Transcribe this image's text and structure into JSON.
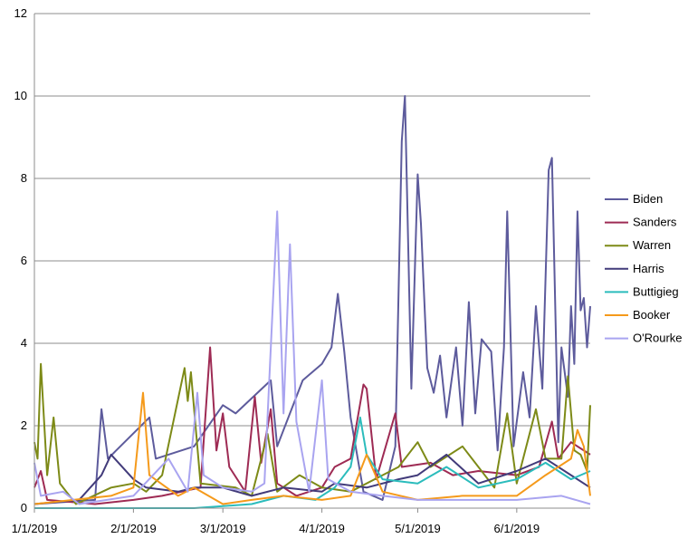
{
  "chart_data": {
    "type": "line",
    "title": "",
    "xlabel": "",
    "ylabel": "",
    "ylim": [
      0,
      12
    ],
    "yticks": [
      0,
      2,
      4,
      6,
      8,
      10,
      12
    ],
    "xlim": [
      "2019-01-01",
      "2019-06-24"
    ],
    "xticks": [
      "1/1/2019",
      "2/1/2019",
      "3/1/2019",
      "4/1/2019",
      "5/1/2019",
      "6/1/2019"
    ],
    "grid": "horizontal",
    "legend_position": "right",
    "series": [
      {
        "name": "Biden",
        "color": "#5d5b9c",
        "points": [
          [
            "2019-01-01",
            0.1
          ],
          [
            "2019-01-20",
            0.2
          ],
          [
            "2019-01-22",
            2.4
          ],
          [
            "2019-01-24",
            1.2
          ],
          [
            "2019-02-06",
            2.2
          ],
          [
            "2019-02-08",
            1.2
          ],
          [
            "2019-02-20",
            1.5
          ],
          [
            "2019-03-01",
            2.5
          ],
          [
            "2019-03-05",
            2.3
          ],
          [
            "2019-03-16",
            3.1
          ],
          [
            "2019-03-18",
            1.5
          ],
          [
            "2019-03-26",
            3.1
          ],
          [
            "2019-04-01",
            3.5
          ],
          [
            "2019-04-04",
            3.9
          ],
          [
            "2019-04-06",
            5.2
          ],
          [
            "2019-04-08",
            3.8
          ],
          [
            "2019-04-10",
            2.2
          ],
          [
            "2019-04-14",
            0.4
          ],
          [
            "2019-04-20",
            0.2
          ],
          [
            "2019-04-24",
            1.5
          ],
          [
            "2019-04-26",
            8.9
          ],
          [
            "2019-04-27",
            10.0
          ],
          [
            "2019-04-29",
            2.9
          ],
          [
            "2019-05-01",
            8.1
          ],
          [
            "2019-05-02",
            6.9
          ],
          [
            "2019-05-04",
            3.4
          ],
          [
            "2019-05-06",
            2.8
          ],
          [
            "2019-05-08",
            3.7
          ],
          [
            "2019-05-10",
            2.2
          ],
          [
            "2019-05-13",
            3.9
          ],
          [
            "2019-05-15",
            2.0
          ],
          [
            "2019-05-17",
            5.0
          ],
          [
            "2019-05-19",
            2.3
          ],
          [
            "2019-05-21",
            4.1
          ],
          [
            "2019-05-24",
            3.8
          ],
          [
            "2019-05-26",
            1.4
          ],
          [
            "2019-05-28",
            3.9
          ],
          [
            "2019-05-29",
            7.2
          ],
          [
            "2019-05-31",
            1.5
          ],
          [
            "2019-06-03",
            3.3
          ],
          [
            "2019-06-05",
            2.2
          ],
          [
            "2019-06-07",
            4.9
          ],
          [
            "2019-06-09",
            2.9
          ],
          [
            "2019-06-11",
            8.2
          ],
          [
            "2019-06-12",
            8.5
          ],
          [
            "2019-06-14",
            1.6
          ],
          [
            "2019-06-15",
            3.9
          ],
          [
            "2019-06-17",
            2.7
          ],
          [
            "2019-06-18",
            4.9
          ],
          [
            "2019-06-19",
            3.5
          ],
          [
            "2019-06-20",
            7.2
          ],
          [
            "2019-06-21",
            4.8
          ],
          [
            "2019-06-22",
            5.1
          ],
          [
            "2019-06-23",
            3.9
          ],
          [
            "2019-06-24",
            4.9
          ]
        ]
      },
      {
        "name": "Sanders",
        "color": "#9e2b54",
        "points": [
          [
            "2019-01-01",
            0.5
          ],
          [
            "2019-01-03",
            0.9
          ],
          [
            "2019-01-05",
            0.2
          ],
          [
            "2019-01-20",
            0.1
          ],
          [
            "2019-02-01",
            0.2
          ],
          [
            "2019-02-10",
            0.3
          ],
          [
            "2019-02-22",
            0.5
          ],
          [
            "2019-02-25",
            3.9
          ],
          [
            "2019-02-27",
            1.4
          ],
          [
            "2019-03-01",
            2.3
          ],
          [
            "2019-03-03",
            1.0
          ],
          [
            "2019-03-08",
            0.4
          ],
          [
            "2019-03-11",
            2.7
          ],
          [
            "2019-03-13",
            1.1
          ],
          [
            "2019-03-16",
            2.4
          ],
          [
            "2019-03-18",
            0.6
          ],
          [
            "2019-03-24",
            0.3
          ],
          [
            "2019-04-01",
            0.5
          ],
          [
            "2019-04-05",
            1.0
          ],
          [
            "2019-04-10",
            1.2
          ],
          [
            "2019-04-14",
            3.0
          ],
          [
            "2019-04-15",
            2.9
          ],
          [
            "2019-04-18",
            0.7
          ],
          [
            "2019-04-24",
            2.3
          ],
          [
            "2019-04-26",
            1.0
          ],
          [
            "2019-05-05",
            1.1
          ],
          [
            "2019-05-12",
            0.8
          ],
          [
            "2019-05-20",
            0.9
          ],
          [
            "2019-06-01",
            0.8
          ],
          [
            "2019-06-08",
            1.0
          ],
          [
            "2019-06-12",
            2.1
          ],
          [
            "2019-06-14",
            1.2
          ],
          [
            "2019-06-18",
            1.6
          ],
          [
            "2019-06-24",
            1.3
          ]
        ]
      },
      {
        "name": "Warren",
        "color": "#7d8a17",
        "points": [
          [
            "2019-01-01",
            1.6
          ],
          [
            "2019-01-02",
            1.2
          ],
          [
            "2019-01-03",
            3.5
          ],
          [
            "2019-01-05",
            0.8
          ],
          [
            "2019-01-07",
            2.2
          ],
          [
            "2019-01-09",
            0.6
          ],
          [
            "2019-01-14",
            0.1
          ],
          [
            "2019-01-25",
            0.5
          ],
          [
            "2019-02-01",
            0.6
          ],
          [
            "2019-02-05",
            0.4
          ],
          [
            "2019-02-10",
            0.8
          ],
          [
            "2019-02-17",
            3.4
          ],
          [
            "2019-02-18",
            2.6
          ],
          [
            "2019-02-19",
            3.3
          ],
          [
            "2019-02-22",
            0.6
          ],
          [
            "2019-03-05",
            0.5
          ],
          [
            "2019-03-10",
            0.3
          ],
          [
            "2019-03-15",
            1.8
          ],
          [
            "2019-03-18",
            0.4
          ],
          [
            "2019-03-25",
            0.8
          ],
          [
            "2019-04-01",
            0.5
          ],
          [
            "2019-04-10",
            0.4
          ],
          [
            "2019-04-20",
            0.8
          ],
          [
            "2019-04-25",
            1.0
          ],
          [
            "2019-05-01",
            1.6
          ],
          [
            "2019-05-05",
            1.0
          ],
          [
            "2019-05-15",
            1.5
          ],
          [
            "2019-05-25",
            0.5
          ],
          [
            "2019-05-29",
            2.3
          ],
          [
            "2019-06-01",
            0.6
          ],
          [
            "2019-06-07",
            2.4
          ],
          [
            "2019-06-10",
            1.2
          ],
          [
            "2019-06-15",
            1.2
          ],
          [
            "2019-06-17",
            3.2
          ],
          [
            "2019-06-19",
            1.4
          ],
          [
            "2019-06-21",
            1.3
          ],
          [
            "2019-06-23",
            0.9
          ],
          [
            "2019-06-24",
            2.5
          ]
        ]
      },
      {
        "name": "Harris",
        "color": "#423b7a",
        "points": [
          [
            "2019-01-01",
            0.1
          ],
          [
            "2019-01-15",
            0.2
          ],
          [
            "2019-01-22",
            0.8
          ],
          [
            "2019-01-25",
            1.3
          ],
          [
            "2019-02-01",
            0.7
          ],
          [
            "2019-02-05",
            0.5
          ],
          [
            "2019-02-15",
            0.4
          ],
          [
            "2019-02-20",
            0.5
          ],
          [
            "2019-03-01",
            0.5
          ],
          [
            "2019-03-10",
            0.3
          ],
          [
            "2019-03-20",
            0.5
          ],
          [
            "2019-04-01",
            0.4
          ],
          [
            "2019-04-05",
            0.6
          ],
          [
            "2019-04-15",
            0.5
          ],
          [
            "2019-04-25",
            0.7
          ],
          [
            "2019-05-01",
            0.8
          ],
          [
            "2019-05-10",
            1.3
          ],
          [
            "2019-05-20",
            0.6
          ],
          [
            "2019-06-01",
            0.9
          ],
          [
            "2019-06-10",
            1.2
          ],
          [
            "2019-06-18",
            0.8
          ],
          [
            "2019-06-24",
            0.5
          ]
        ]
      },
      {
        "name": "Buttigieg",
        "color": "#2bbcbc",
        "points": [
          [
            "2019-01-01",
            0.0
          ],
          [
            "2019-02-20",
            0.0
          ],
          [
            "2019-03-10",
            0.1
          ],
          [
            "2019-03-20",
            0.3
          ],
          [
            "2019-03-30",
            0.2
          ],
          [
            "2019-04-05",
            0.5
          ],
          [
            "2019-04-10",
            1.0
          ],
          [
            "2019-04-13",
            2.2
          ],
          [
            "2019-04-15",
            1.3
          ],
          [
            "2019-04-20",
            0.7
          ],
          [
            "2019-05-01",
            0.6
          ],
          [
            "2019-05-10",
            1.0
          ],
          [
            "2019-05-20",
            0.5
          ],
          [
            "2019-06-01",
            0.7
          ],
          [
            "2019-06-10",
            1.1
          ],
          [
            "2019-06-18",
            0.7
          ],
          [
            "2019-06-24",
            0.9
          ]
        ]
      },
      {
        "name": "Booker",
        "color": "#f59a1b",
        "points": [
          [
            "2019-01-01",
            0.1
          ],
          [
            "2019-01-25",
            0.3
          ],
          [
            "2019-02-01",
            0.5
          ],
          [
            "2019-02-04",
            2.8
          ],
          [
            "2019-02-06",
            0.8
          ],
          [
            "2019-02-15",
            0.3
          ],
          [
            "2019-02-20",
            0.5
          ],
          [
            "2019-03-01",
            0.1
          ],
          [
            "2019-03-10",
            0.2
          ],
          [
            "2019-03-20",
            0.3
          ],
          [
            "2019-04-01",
            0.2
          ],
          [
            "2019-04-10",
            0.3
          ],
          [
            "2019-04-15",
            1.3
          ],
          [
            "2019-04-20",
            0.4
          ],
          [
            "2019-05-01",
            0.2
          ],
          [
            "2019-05-15",
            0.3
          ],
          [
            "2019-06-01",
            0.3
          ],
          [
            "2019-06-10",
            0.8
          ],
          [
            "2019-06-18",
            1.2
          ],
          [
            "2019-06-20",
            1.9
          ],
          [
            "2019-06-22",
            1.5
          ],
          [
            "2019-06-24",
            0.3
          ]
        ]
      },
      {
        "name": "O'Rourke",
        "color": "#a9a4f0",
        "points": [
          [
            "2019-01-01",
            1.1
          ],
          [
            "2019-01-03",
            0.3
          ],
          [
            "2019-01-10",
            0.4
          ],
          [
            "2019-01-15",
            0.1
          ],
          [
            "2019-02-01",
            0.3
          ],
          [
            "2019-02-12",
            1.2
          ],
          [
            "2019-02-18",
            0.4
          ],
          [
            "2019-02-21",
            2.8
          ],
          [
            "2019-02-23",
            0.8
          ],
          [
            "2019-03-01",
            0.5
          ],
          [
            "2019-03-10",
            0.4
          ],
          [
            "2019-03-14",
            0.6
          ],
          [
            "2019-03-18",
            7.2
          ],
          [
            "2019-03-20",
            2.3
          ],
          [
            "2019-03-22",
            6.4
          ],
          [
            "2019-03-24",
            2.1
          ],
          [
            "2019-03-28",
            0.4
          ],
          [
            "2019-04-01",
            3.1
          ],
          [
            "2019-04-03",
            0.7
          ],
          [
            "2019-04-10",
            0.4
          ],
          [
            "2019-04-20",
            0.3
          ],
          [
            "2019-05-01",
            0.2
          ],
          [
            "2019-05-15",
            0.2
          ],
          [
            "2019-06-01",
            0.2
          ],
          [
            "2019-06-15",
            0.3
          ],
          [
            "2019-06-24",
            0.1
          ]
        ]
      }
    ]
  }
}
